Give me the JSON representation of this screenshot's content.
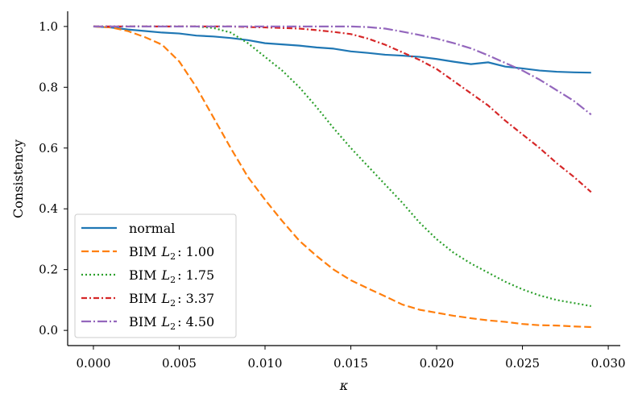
{
  "chart_data": {
    "type": "line",
    "title": "",
    "xlabel": "κ",
    "ylabel": "Consistency",
    "xlim": [
      -0.0015,
      0.0307
    ],
    "ylim": [
      -0.05,
      1.05
    ],
    "xticks": [
      0.0,
      0.005,
      0.01,
      0.015,
      0.02,
      0.025,
      0.03
    ],
    "xtick_labels": [
      "0.000",
      "0.005",
      "0.010",
      "0.015",
      "0.020",
      "0.025",
      "0.030"
    ],
    "yticks": [
      0.0,
      0.2,
      0.4,
      0.6,
      0.8,
      1.0
    ],
    "ytick_labels": [
      "0.0",
      "0.2",
      "0.4",
      "0.6",
      "0.8",
      "1.0"
    ],
    "grid": false,
    "legend_position": "lower-left",
    "x": [
      0.0,
      0.001,
      0.002,
      0.003,
      0.004,
      0.005,
      0.006,
      0.007,
      0.008,
      0.009,
      0.01,
      0.011,
      0.012,
      0.013,
      0.014,
      0.015,
      0.016,
      0.017,
      0.018,
      0.019,
      0.02,
      0.021,
      0.022,
      0.023,
      0.024,
      0.025,
      0.026,
      0.027,
      0.028,
      0.029
    ],
    "series": [
      {
        "name": "normal",
        "legend_prefix": "normal",
        "legend_value": "",
        "color": "#1f77b4",
        "dash": "",
        "values": [
          1.0,
          0.997,
          0.99,
          0.985,
          0.98,
          0.977,
          0.97,
          0.967,
          0.962,
          0.955,
          0.945,
          0.941,
          0.937,
          0.931,
          0.927,
          0.918,
          0.913,
          0.907,
          0.904,
          0.9,
          0.893,
          0.884,
          0.876,
          0.882,
          0.868,
          0.862,
          0.855,
          0.851,
          0.849,
          0.848
        ]
      },
      {
        "name": "BIM L2 : 1.00",
        "legend_prefix": "BIM",
        "legend_value": ": 1.00",
        "color": "#ff7f0e",
        "dash": "9,4",
        "values": [
          1.0,
          0.997,
          0.985,
          0.965,
          0.94,
          0.885,
          0.8,
          0.7,
          0.6,
          0.505,
          0.43,
          0.36,
          0.295,
          0.245,
          0.2,
          0.165,
          0.138,
          0.112,
          0.085,
          0.068,
          0.058,
          0.048,
          0.04,
          0.033,
          0.028,
          0.021,
          0.017,
          0.016,
          0.013,
          0.011
        ]
      },
      {
        "name": "BIM L2 : 1.75",
        "legend_prefix": "BIM",
        "legend_value": ": 1.75",
        "color": "#2ca02c",
        "dash": "2,3",
        "values": [
          1.0,
          1.0,
          1.0,
          1.0,
          1.0,
          1.0,
          1.0,
          0.995,
          0.98,
          0.945,
          0.9,
          0.855,
          0.8,
          0.735,
          0.665,
          0.6,
          0.54,
          0.48,
          0.42,
          0.355,
          0.3,
          0.255,
          0.22,
          0.19,
          0.16,
          0.135,
          0.115,
          0.1,
          0.09,
          0.08
        ]
      },
      {
        "name": "BIM L2 : 3.37",
        "legend_prefix": "BIM",
        "legend_value": ": 3.37",
        "color": "#d62728",
        "dash": "7,3,2,3",
        "values": [
          1.0,
          1.0,
          1.0,
          1.0,
          1.0,
          1.0,
          1.0,
          1.0,
          1.0,
          0.998,
          0.997,
          0.995,
          0.993,
          0.988,
          0.982,
          0.975,
          0.96,
          0.94,
          0.915,
          0.89,
          0.86,
          0.82,
          0.78,
          0.74,
          0.69,
          0.645,
          0.6,
          0.55,
          0.505,
          0.455
        ]
      },
      {
        "name": "BIM L2 : 4.50",
        "legend_prefix": "BIM",
        "legend_value": ": 4.50",
        "color": "#9467bd",
        "dash": "12,3,2,3",
        "values": [
          1.0,
          1.0,
          1.0,
          1.0,
          1.0,
          1.0,
          1.0,
          1.0,
          1.0,
          1.0,
          1.0,
          1.0,
          1.0,
          1.0,
          1.0,
          1.0,
          0.998,
          0.993,
          0.983,
          0.972,
          0.96,
          0.945,
          0.928,
          0.905,
          0.88,
          0.855,
          0.825,
          0.79,
          0.755,
          0.71
        ]
      }
    ]
  }
}
